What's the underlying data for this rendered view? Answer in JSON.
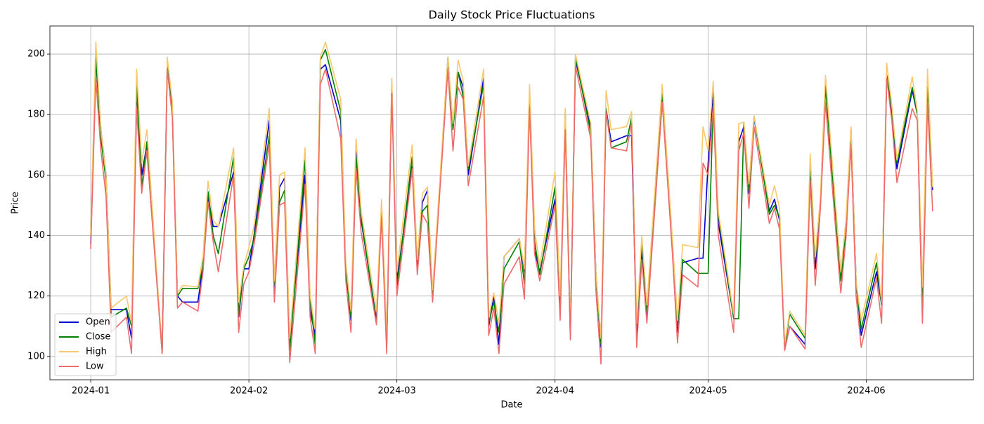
{
  "chart_data": {
    "type": "line",
    "title": "Daily Stock Price Fluctuations",
    "x_label": "Date",
    "y_label": "Price",
    "x": [
      "2024-01-01",
      "2024-01-02",
      "2024-01-03",
      "2024-01-04",
      "2024-01-05",
      "2024-01-08",
      "2024-01-09",
      "2024-01-10",
      "2024-01-11",
      "2024-01-12",
      "2024-01-15",
      "2024-01-16",
      "2024-01-17",
      "2024-01-18",
      "2024-01-19",
      "2024-01-22",
      "2024-01-23",
      "2024-01-24",
      "2024-01-25",
      "2024-01-26",
      "2024-01-29",
      "2024-01-30",
      "2024-01-31",
      "2024-02-01",
      "2024-02-02",
      "2024-02-05",
      "2024-02-06",
      "2024-02-07",
      "2024-02-08",
      "2024-02-09",
      "2024-02-12",
      "2024-02-13",
      "2024-02-14",
      "2024-02-15",
      "2024-02-16",
      "2024-02-19",
      "2024-02-20",
      "2024-02-21",
      "2024-02-22",
      "2024-02-23",
      "2024-02-26",
      "2024-02-27",
      "2024-02-28",
      "2024-02-29",
      "2024-03-01",
      "2024-03-04",
      "2024-03-05",
      "2024-03-06",
      "2024-03-07",
      "2024-03-08",
      "2024-03-11",
      "2024-03-12",
      "2024-03-13",
      "2024-03-14",
      "2024-03-15",
      "2024-03-18",
      "2024-03-19",
      "2024-03-20",
      "2024-03-21",
      "2024-03-22",
      "2024-03-25",
      "2024-03-26",
      "2024-03-27",
      "2024-03-28",
      "2024-03-29",
      "2024-04-01",
      "2024-04-02",
      "2024-04-03",
      "2024-04-04",
      "2024-04-05",
      "2024-04-08",
      "2024-04-09",
      "2024-04-10",
      "2024-04-11",
      "2024-04-12",
      "2024-04-15",
      "2024-04-16",
      "2024-04-17",
      "2024-04-18",
      "2024-04-19",
      "2024-04-22",
      "2024-04-23",
      "2024-04-24",
      "2024-04-25",
      "2024-04-26",
      "2024-04-29",
      "2024-04-30",
      "2024-05-01",
      "2024-05-02",
      "2024-05-03",
      "2024-05-06",
      "2024-05-07",
      "2024-05-08",
      "2024-05-09",
      "2024-05-10",
      "2024-05-13",
      "2024-05-14",
      "2024-05-15",
      "2024-05-16",
      "2024-05-17",
      "2024-05-20",
      "2024-05-21",
      "2024-05-22",
      "2024-05-23",
      "2024-05-24",
      "2024-05-27",
      "2024-05-28",
      "2024-05-29",
      "2024-05-30",
      "2024-05-31",
      "2024-06-03",
      "2024-06-04",
      "2024-06-05",
      "2024-06-06",
      "2024-06-07",
      "2024-06-10",
      "2024-06-11",
      "2024-06-12",
      "2024-06-13",
      "2024-06-14"
    ],
    "series": [
      {
        "name": "Open",
        "color": "#0000cc",
        "values": [
          137,
          198,
          175,
          160,
          115.5,
          115.5,
          106,
          188,
          160,
          170,
          102,
          197,
          182,
          120,
          118,
          118,
          130,
          153,
          143,
          143,
          161,
          113,
          129,
          129,
          140,
          178,
          121,
          156,
          159,
          104,
          160,
          115,
          107,
          195,
          196.5,
          178,
          129,
          112,
          168,
          145,
          112,
          150,
          104,
          190,
          125,
          163,
          129,
          151,
          155,
          120,
          198,
          176,
          194,
          189,
          160,
          192,
          110,
          120,
          104,
          133,
          139,
          128,
          185,
          135,
          128,
          152,
          115,
          178,
          107,
          198,
          176,
          128,
          103,
          182,
          171,
          173,
          173,
          108,
          135,
          113,
          185,
          160,
          135,
          108,
          131,
          132.5,
          132.5,
          164,
          188,
          144,
          113,
          171,
          176,
          154,
          179,
          148,
          152,
          145,
          102.5,
          110,
          104,
          162,
          129,
          150,
          190,
          128,
          140,
          175,
          125,
          107,
          128,
          117,
          193,
          180,
          162,
          188,
          180,
          113,
          188,
          155
        ]
      },
      {
        "name": "Close",
        "color": "#008000",
        "values": [
          140,
          199,
          172,
          158,
          113,
          116,
          110,
          190,
          156,
          171,
          101,
          196,
          180,
          120,
          122.5,
          122.5,
          130,
          154.5,
          140,
          134,
          166,
          114,
          129,
          133,
          139,
          173,
          124,
          151,
          155,
          102,
          165,
          119,
          104,
          198,
          201.5,
          181,
          128,
          113,
          166,
          146,
          111,
          151,
          103,
          191,
          123,
          166,
          131,
          148,
          150,
          119,
          199,
          175,
          194,
          186,
          162,
          190,
          111,
          118,
          108,
          129,
          138,
          124,
          187,
          138,
          127,
          156,
          117,
          181,
          108,
          199,
          174,
          127,
          104,
          182,
          169,
          171,
          179,
          110,
          138,
          115,
          187,
          163,
          138,
          110,
          132,
          127.5,
          127.5,
          127.5,
          184,
          147,
          112.5,
          112.5,
          177.5,
          155,
          179.5,
          147,
          150,
          146,
          103,
          114,
          106,
          164,
          132,
          152,
          189,
          125,
          141,
          175,
          124,
          109,
          131,
          117,
          193,
          182,
          164,
          189,
          180,
          114,
          190,
          156
        ]
      },
      {
        "name": "High",
        "color": "#f9c86b",
        "values": [
          140,
          204,
          175,
          160,
          116,
          120,
          111,
          195,
          164,
          175,
          102,
          199,
          184,
          121,
          123.5,
          123,
          133,
          158,
          145,
          143,
          169,
          118,
          130,
          136,
          143,
          182,
          125,
          160,
          161,
          106,
          169,
          120,
          109,
          199,
          204,
          185,
          131,
          115,
          172,
          148,
          115,
          152,
          108,
          192,
          128,
          170,
          132,
          154,
          156,
          122,
          199,
          177,
          198,
          191,
          163,
          195,
          113,
          121,
          111,
          133,
          139,
          129,
          190,
          142,
          130,
          161,
          120,
          182,
          109,
          200,
          177,
          128,
          106,
          188,
          175,
          176,
          181,
          111,
          140,
          117,
          190,
          164,
          139,
          112,
          137,
          136,
          176,
          168,
          191,
          148,
          114,
          177,
          177.5,
          157,
          179.5,
          150,
          156.5,
          149,
          104,
          115,
          107,
          167,
          133,
          153,
          193,
          128,
          145,
          176,
          125,
          112,
          134,
          118,
          197,
          183,
          165,
          192.5,
          181,
          123,
          195,
          156
        ]
      },
      {
        "name": "Low",
        "color": "#ee6b6b",
        "values": [
          135.5,
          192,
          168,
          153,
          108,
          113,
          101,
          182,
          154,
          168,
          101,
          195,
          179,
          116,
          118,
          115,
          128,
          151,
          138,
          128,
          160,
          108,
          124,
          128,
          137,
          170,
          118,
          150,
          151,
          98,
          157,
          113,
          101,
          190,
          195,
          172,
          125,
          108,
          162,
          141,
          110.5,
          146,
          101,
          187,
          120,
          162,
          127,
          147,
          144,
          118,
          195,
          168,
          189,
          185,
          156.5,
          186,
          107,
          116,
          101,
          124,
          133,
          119,
          182,
          134,
          125,
          150,
          112,
          175,
          105.5,
          196,
          172,
          122,
          97.5,
          181,
          169,
          168,
          177,
          103,
          132,
          111,
          184,
          159,
          134,
          104.5,
          127,
          123,
          164,
          160,
          183,
          140,
          108,
          168,
          174,
          149,
          176,
          144,
          149,
          142,
          102,
          110,
          102.5,
          158,
          123.5,
          149,
          184,
          121,
          139,
          170,
          120,
          103,
          126,
          111,
          192,
          178,
          157.5,
          182,
          178,
          111,
          184,
          148
        ]
      }
    ],
    "xlim": [
      "2023-12-24",
      "2024-06-22"
    ],
    "xticks": [
      {
        "value": "2024-01-01",
        "label": "2024-01"
      },
      {
        "value": "2024-02-01",
        "label": "2024-02"
      },
      {
        "value": "2024-03-01",
        "label": "2024-03"
      },
      {
        "value": "2024-04-01",
        "label": "2024-04"
      },
      {
        "value": "2024-05-01",
        "label": "2024-05"
      },
      {
        "value": "2024-06-01",
        "label": "2024-06"
      }
    ],
    "ylim": [
      92.3,
      209.3
    ],
    "yticks": [
      100,
      120,
      140,
      160,
      180,
      200
    ],
    "grid": true,
    "legend": "lower left"
  }
}
